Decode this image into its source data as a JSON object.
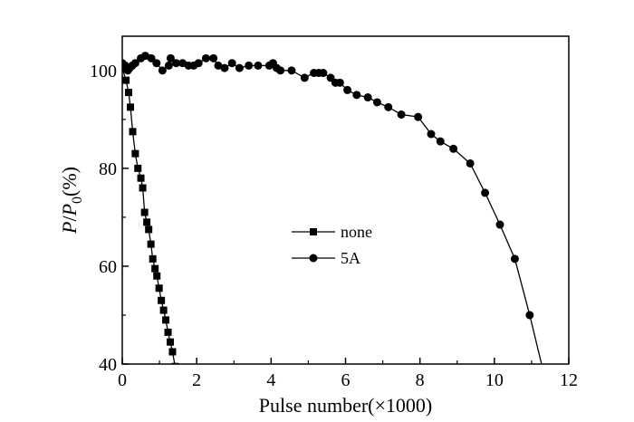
{
  "chart_data": {
    "type": "line",
    "xlabel": "Pulse number(×1000)",
    "ylabel": "P/P0(%)",
    "ylabel_parts": {
      "p": "P",
      "slash": "/",
      "p0": "P",
      "sub": "0",
      "unit": "(%)"
    },
    "xlim": [
      0,
      12
    ],
    "ylim": [
      40,
      107
    ],
    "x_ticks": [
      0,
      2,
      4,
      6,
      8,
      10,
      12
    ],
    "y_ticks": [
      40,
      60,
      80,
      100
    ],
    "x_tick_labels": [
      "0",
      "2",
      "4",
      "6",
      "8",
      "10",
      "12"
    ],
    "y_tick_labels": [
      "40",
      "60",
      "80",
      "100"
    ],
    "grid": false,
    "legend_position": "center",
    "series": [
      {
        "name": "none",
        "marker": "square",
        "color": "#000000",
        "x": [
          0.0,
          0.1,
          0.17,
          0.22,
          0.28,
          0.35,
          0.42,
          0.5,
          0.55,
          0.6,
          0.66,
          0.71,
          0.77,
          0.82,
          0.88,
          0.93,
          0.99,
          1.05,
          1.11,
          1.17,
          1.23,
          1.29,
          1.35,
          1.42
        ],
        "y": [
          100.5,
          98.0,
          95.5,
          92.5,
          87.5,
          83.0,
          80.0,
          78.0,
          76.0,
          71.0,
          69.0,
          67.5,
          64.5,
          61.5,
          59.5,
          58.0,
          55.5,
          53.0,
          51.0,
          49.0,
          46.5,
          44.5,
          42.5,
          39.5
        ]
      },
      {
        "name": "5A",
        "marker": "circle",
        "color": "#000000",
        "x": [
          0.0,
          0.08,
          0.15,
          0.2,
          0.27,
          0.35,
          0.5,
          0.62,
          0.78,
          0.92,
          1.08,
          1.25,
          1.3,
          1.45,
          1.62,
          1.78,
          1.92,
          2.05,
          2.25,
          2.45,
          2.58,
          2.75,
          2.95,
          3.15,
          3.4,
          3.65,
          3.95,
          4.05,
          4.15,
          4.25,
          4.55,
          4.9,
          5.15,
          5.28,
          5.4,
          5.6,
          5.73,
          5.85,
          6.05,
          6.3,
          6.6,
          6.85,
          7.15,
          7.5,
          7.95,
          8.3,
          8.55,
          8.9,
          9.35,
          9.75,
          10.15,
          10.55,
          10.95,
          11.3
        ],
        "y": [
          101.5,
          101.0,
          100.0,
          100.5,
          101.0,
          101.5,
          102.5,
          103.0,
          102.5,
          101.5,
          100.0,
          101.0,
          102.5,
          101.5,
          101.5,
          101.0,
          101.0,
          101.5,
          102.5,
          102.5,
          101.0,
          100.5,
          101.5,
          100.5,
          101.0,
          101.0,
          101.0,
          101.5,
          100.5,
          100.0,
          100.0,
          98.5,
          99.5,
          99.5,
          99.5,
          98.5,
          97.5,
          97.5,
          96.0,
          95.0,
          94.5,
          93.5,
          92.5,
          91.0,
          90.5,
          87.0,
          85.5,
          84.0,
          81.0,
          75.0,
          68.5,
          61.5,
          50.0,
          39.0
        ]
      }
    ]
  }
}
